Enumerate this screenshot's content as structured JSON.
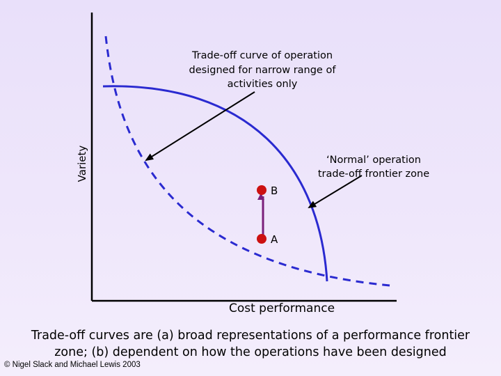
{
  "diagram": {
    "y_axis_label": "Variety",
    "x_axis_label": "Cost performance",
    "narrow_curve_annotation": [
      "Trade-off curve of operation",
      "designed for narrow range of",
      "activities only"
    ],
    "frontier_annotation": [
      "‘Normal’ operation",
      "trade-off frontier zone"
    ],
    "point_b_label": "B",
    "point_a_label": "A",
    "colors": {
      "solid_curve": "#2a2ad0",
      "dashed_curve": "#2a2ad0",
      "points": "#cc1111",
      "connector": "#7a1f7a",
      "axes": "#000000"
    }
  },
  "caption": "Trade-off curves are (a) broad representations of a performance frontier zone; (b) dependent on how the operations have been designed",
  "copyright": "© Nigel Slack and Michael Lewis 2003"
}
